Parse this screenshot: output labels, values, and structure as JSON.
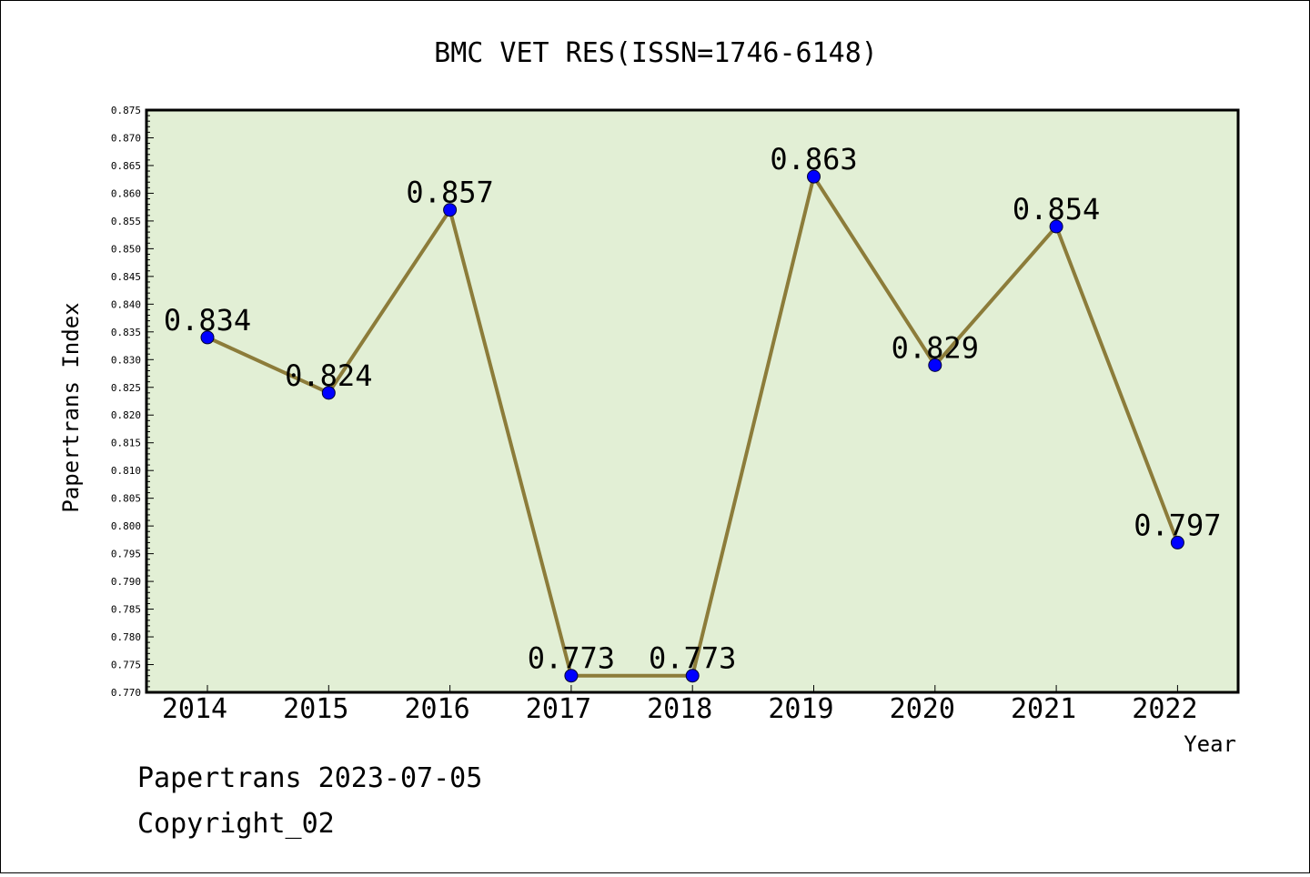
{
  "colors": {
    "plot_background": "#e2efd5",
    "line": "#8c7c3a",
    "marker": "#0000ff",
    "axis": "#000000"
  },
  "footer": {
    "line1": "Papertrans 2023-07-05",
    "line2": "Copyright_02"
  },
  "chart_data": {
    "type": "line",
    "title": "BMC VET RES(ISSN=1746-6148)",
    "xlabel": "Year",
    "ylabel": "Papertrans Index",
    "categories": [
      "2014",
      "2015",
      "2016",
      "2017",
      "2018",
      "2019",
      "2020",
      "2021",
      "2022"
    ],
    "series": [
      {
        "values": [
          0.834,
          0.824,
          0.857,
          0.773,
          0.773,
          0.863,
          0.829,
          0.854,
          0.797
        ],
        "labels": [
          "0.834",
          "0.824",
          "0.857",
          "0.773",
          "0.773",
          "0.863",
          "0.829",
          "0.854",
          "0.797"
        ]
      }
    ],
    "ylim": [
      0.77,
      0.875
    ],
    "yticks": [
      "0.770",
      "0.775",
      "0.780",
      "0.785",
      "0.790",
      "0.795",
      "0.800",
      "0.805",
      "0.810",
      "0.815",
      "0.820",
      "0.825",
      "0.830",
      "0.835",
      "0.840",
      "0.845",
      "0.850",
      "0.855",
      "0.860",
      "0.865",
      "0.870",
      "0.875"
    ],
    "grid": false,
    "legend": "none"
  }
}
